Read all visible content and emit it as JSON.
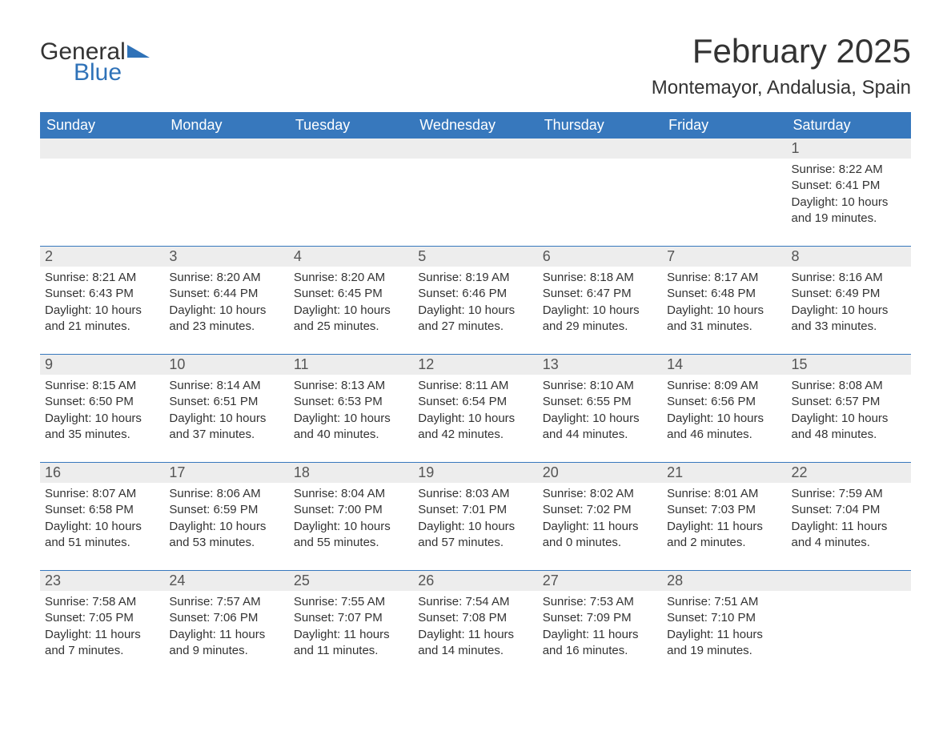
{
  "brand": {
    "general": "General",
    "blue": "Blue",
    "triangle_color": "#2f72b8"
  },
  "title": "February 2025",
  "location": "Montemayor, Andalusia, Spain",
  "colors": {
    "header_bg": "#3778bd",
    "header_text": "#ffffff",
    "daynum_bg": "#ededed",
    "border": "#3778bd",
    "body_text": "#333333"
  },
  "day_headers": [
    "Sunday",
    "Monday",
    "Tuesday",
    "Wednesday",
    "Thursday",
    "Friday",
    "Saturday"
  ],
  "weeks": [
    [
      null,
      null,
      null,
      null,
      null,
      null,
      {
        "n": "1",
        "sr": "Sunrise: 8:22 AM",
        "ss": "Sunset: 6:41 PM",
        "d1": "Daylight: 10 hours",
        "d2": "and 19 minutes."
      }
    ],
    [
      {
        "n": "2",
        "sr": "Sunrise: 8:21 AM",
        "ss": "Sunset: 6:43 PM",
        "d1": "Daylight: 10 hours",
        "d2": "and 21 minutes."
      },
      {
        "n": "3",
        "sr": "Sunrise: 8:20 AM",
        "ss": "Sunset: 6:44 PM",
        "d1": "Daylight: 10 hours",
        "d2": "and 23 minutes."
      },
      {
        "n": "4",
        "sr": "Sunrise: 8:20 AM",
        "ss": "Sunset: 6:45 PM",
        "d1": "Daylight: 10 hours",
        "d2": "and 25 minutes."
      },
      {
        "n": "5",
        "sr": "Sunrise: 8:19 AM",
        "ss": "Sunset: 6:46 PM",
        "d1": "Daylight: 10 hours",
        "d2": "and 27 minutes."
      },
      {
        "n": "6",
        "sr": "Sunrise: 8:18 AM",
        "ss": "Sunset: 6:47 PM",
        "d1": "Daylight: 10 hours",
        "d2": "and 29 minutes."
      },
      {
        "n": "7",
        "sr": "Sunrise: 8:17 AM",
        "ss": "Sunset: 6:48 PM",
        "d1": "Daylight: 10 hours",
        "d2": "and 31 minutes."
      },
      {
        "n": "8",
        "sr": "Sunrise: 8:16 AM",
        "ss": "Sunset: 6:49 PM",
        "d1": "Daylight: 10 hours",
        "d2": "and 33 minutes."
      }
    ],
    [
      {
        "n": "9",
        "sr": "Sunrise: 8:15 AM",
        "ss": "Sunset: 6:50 PM",
        "d1": "Daylight: 10 hours",
        "d2": "and 35 minutes."
      },
      {
        "n": "10",
        "sr": "Sunrise: 8:14 AM",
        "ss": "Sunset: 6:51 PM",
        "d1": "Daylight: 10 hours",
        "d2": "and 37 minutes."
      },
      {
        "n": "11",
        "sr": "Sunrise: 8:13 AM",
        "ss": "Sunset: 6:53 PM",
        "d1": "Daylight: 10 hours",
        "d2": "and 40 minutes."
      },
      {
        "n": "12",
        "sr": "Sunrise: 8:11 AM",
        "ss": "Sunset: 6:54 PM",
        "d1": "Daylight: 10 hours",
        "d2": "and 42 minutes."
      },
      {
        "n": "13",
        "sr": "Sunrise: 8:10 AM",
        "ss": "Sunset: 6:55 PM",
        "d1": "Daylight: 10 hours",
        "d2": "and 44 minutes."
      },
      {
        "n": "14",
        "sr": "Sunrise: 8:09 AM",
        "ss": "Sunset: 6:56 PM",
        "d1": "Daylight: 10 hours",
        "d2": "and 46 minutes."
      },
      {
        "n": "15",
        "sr": "Sunrise: 8:08 AM",
        "ss": "Sunset: 6:57 PM",
        "d1": "Daylight: 10 hours",
        "d2": "and 48 minutes."
      }
    ],
    [
      {
        "n": "16",
        "sr": "Sunrise: 8:07 AM",
        "ss": "Sunset: 6:58 PM",
        "d1": "Daylight: 10 hours",
        "d2": "and 51 minutes."
      },
      {
        "n": "17",
        "sr": "Sunrise: 8:06 AM",
        "ss": "Sunset: 6:59 PM",
        "d1": "Daylight: 10 hours",
        "d2": "and 53 minutes."
      },
      {
        "n": "18",
        "sr": "Sunrise: 8:04 AM",
        "ss": "Sunset: 7:00 PM",
        "d1": "Daylight: 10 hours",
        "d2": "and 55 minutes."
      },
      {
        "n": "19",
        "sr": "Sunrise: 8:03 AM",
        "ss": "Sunset: 7:01 PM",
        "d1": "Daylight: 10 hours",
        "d2": "and 57 minutes."
      },
      {
        "n": "20",
        "sr": "Sunrise: 8:02 AM",
        "ss": "Sunset: 7:02 PM",
        "d1": "Daylight: 11 hours",
        "d2": "and 0 minutes."
      },
      {
        "n": "21",
        "sr": "Sunrise: 8:01 AM",
        "ss": "Sunset: 7:03 PM",
        "d1": "Daylight: 11 hours",
        "d2": "and 2 minutes."
      },
      {
        "n": "22",
        "sr": "Sunrise: 7:59 AM",
        "ss": "Sunset: 7:04 PM",
        "d1": "Daylight: 11 hours",
        "d2": "and 4 minutes."
      }
    ],
    [
      {
        "n": "23",
        "sr": "Sunrise: 7:58 AM",
        "ss": "Sunset: 7:05 PM",
        "d1": "Daylight: 11 hours",
        "d2": "and 7 minutes."
      },
      {
        "n": "24",
        "sr": "Sunrise: 7:57 AM",
        "ss": "Sunset: 7:06 PM",
        "d1": "Daylight: 11 hours",
        "d2": "and 9 minutes."
      },
      {
        "n": "25",
        "sr": "Sunrise: 7:55 AM",
        "ss": "Sunset: 7:07 PM",
        "d1": "Daylight: 11 hours",
        "d2": "and 11 minutes."
      },
      {
        "n": "26",
        "sr": "Sunrise: 7:54 AM",
        "ss": "Sunset: 7:08 PM",
        "d1": "Daylight: 11 hours",
        "d2": "and 14 minutes."
      },
      {
        "n": "27",
        "sr": "Sunrise: 7:53 AM",
        "ss": "Sunset: 7:09 PM",
        "d1": "Daylight: 11 hours",
        "d2": "and 16 minutes."
      },
      {
        "n": "28",
        "sr": "Sunrise: 7:51 AM",
        "ss": "Sunset: 7:10 PM",
        "d1": "Daylight: 11 hours",
        "d2": "and 19 minutes."
      },
      null
    ]
  ]
}
